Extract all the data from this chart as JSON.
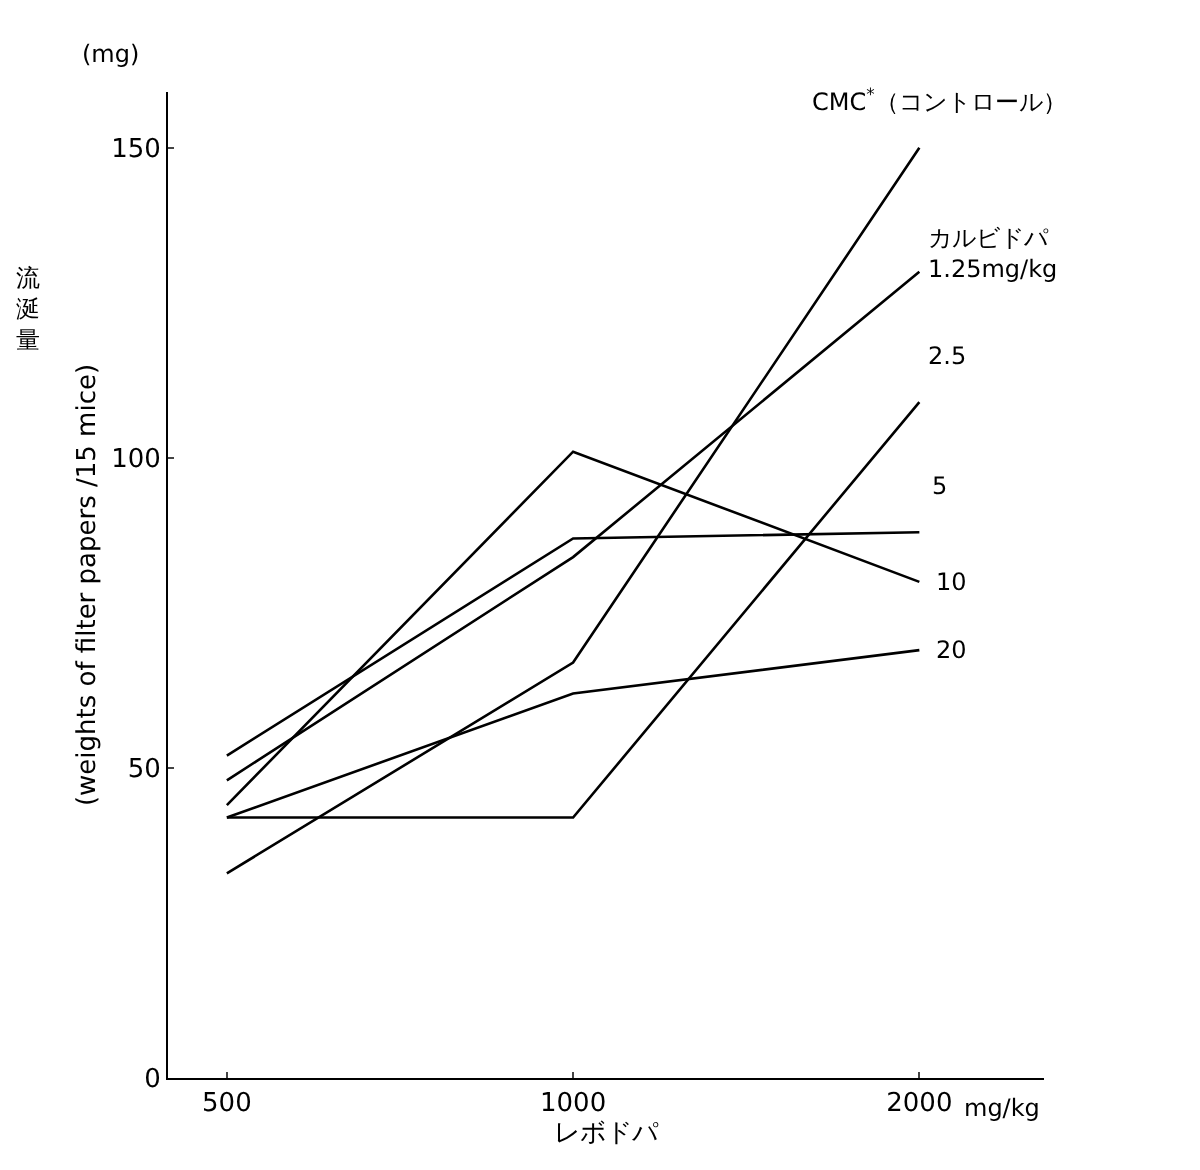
{
  "chart_data": {
    "type": "line",
    "xlabel": "レボドパ",
    "ylabel": "(weights of filter papers /15 mice)",
    "categories": [
      "500",
      "1000",
      "2000"
    ],
    "series": [
      {
        "name": "CMC$^{*}$（コントロール）",
        "color": "#000000",
        "values": [
          33,
          67,
          150
        ]
      },
      {
        "name": "カルビドパ\n1.25mg/kg",
        "color": "#000000",
        "values": [
          48,
          84,
          130
        ]
      },
      {
        "name": "2.5",
        "color": "#000000",
        "values": [
          42,
          42,
          109
        ]
      },
      {
        "name": "5",
        "color": "#000000",
        "values": [
          52,
          87,
          88
        ]
      },
      {
        "name": "10",
        "color": "#000000",
        "values": [
          44,
          101,
          80
        ]
      },
      {
        "name": "20",
        "color": "#000000",
        "values": [
          42,
          62,
          69
        ]
      }
    ],
    "ylim": [
      0,
      159
    ],
    "yticks": [
      0,
      50,
      100,
      150
    ],
    "legend": false,
    "marker": "none",
    "line_style": "solid",
    "annotations": [
      "(mg)",
      "mg/kg",
      "流涎量"
    ]
  }
}
